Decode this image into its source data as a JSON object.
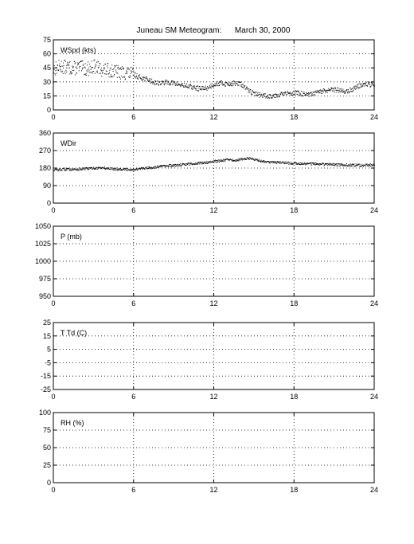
{
  "title": "Juneau SM Meteogram:      March 30, 2000",
  "chart_data": [
    {
      "type": "scatter",
      "label": "WSpd (kts)",
      "xlim": [
        0,
        24
      ],
      "ylim": [
        0,
        75
      ],
      "xticks": [
        "0",
        "6",
        "12",
        "18",
        "24"
      ],
      "yticks": [
        "0",
        "15",
        "30",
        "45",
        "60",
        "75"
      ],
      "grid": true,
      "series": [
        {
          "color": "#000000",
          "x": [
            0,
            0.5,
            1,
            1.5,
            2,
            2.5,
            3,
            3.5,
            4,
            4.5,
            5,
            5.5,
            6,
            6.5,
            7,
            7.5,
            8,
            8.5,
            9,
            9.5,
            10,
            10.5,
            11,
            11.5,
            12,
            12.5,
            13,
            13.5,
            14,
            14.5,
            15,
            15.5,
            16,
            16.5,
            17,
            17.5,
            18,
            18.5,
            19,
            19.5,
            20,
            20.5,
            21,
            21.5,
            22,
            22.5,
            23,
            23.5,
            24
          ],
          "y": [
            44,
            47,
            46,
            45,
            46,
            44,
            47,
            44,
            43,
            42,
            40,
            40,
            38,
            35,
            33,
            30,
            29,
            30,
            29,
            27,
            26,
            24,
            23,
            24,
            28,
            29,
            28,
            29,
            28,
            22,
            18,
            16,
            15,
            16,
            17,
            18,
            19,
            18,
            16,
            18,
            20,
            21,
            22,
            21,
            20,
            24,
            27,
            28,
            26
          ]
        }
      ]
    },
    {
      "type": "scatter",
      "label": "WDir",
      "xlim": [
        0,
        24
      ],
      "ylim": [
        0,
        360
      ],
      "xticks": [
        "0",
        "6",
        "12",
        "18",
        "24"
      ],
      "yticks": [
        "0",
        "90",
        "180",
        "270",
        "360"
      ],
      "grid": true,
      "series": [
        {
          "color": "#000000",
          "x": [
            0,
            0.5,
            1,
            1.5,
            2,
            2.5,
            3,
            3.5,
            4,
            4.5,
            5,
            5.5,
            6,
            6.5,
            7,
            7.5,
            8,
            8.5,
            9,
            9.5,
            10,
            10.5,
            11,
            11.5,
            12,
            12.5,
            13,
            13.5,
            14,
            14.5,
            15,
            15.5,
            16,
            16.5,
            17,
            17.5,
            18,
            18.5,
            19,
            19.5,
            20,
            20.5,
            21,
            21.5,
            22,
            22.5,
            23,
            23.5,
            24
          ],
          "y": [
            172,
            174,
            176,
            175,
            177,
            179,
            181,
            183,
            180,
            178,
            176,
            175,
            174,
            178,
            182,
            186,
            190,
            193,
            195,
            198,
            202,
            205,
            208,
            211,
            216,
            220,
            224,
            221,
            226,
            232,
            228,
            218,
            214,
            212,
            210,
            208,
            206,
            205,
            204,
            203,
            202,
            201,
            200,
            199,
            198,
            197,
            196,
            197,
            198
          ]
        }
      ]
    },
    {
      "type": "scatter",
      "label": "P (mb)",
      "xlim": [
        0,
        24
      ],
      "ylim": [
        950,
        1050
      ],
      "xticks": [
        "0",
        "6",
        "12",
        "18",
        "24"
      ],
      "yticks": [
        "950",
        "975",
        "1000",
        "1025",
        "1050"
      ],
      "grid": true,
      "series": []
    },
    {
      "type": "scatter",
      "label": "T Td (C)",
      "xlim": [
        0,
        24
      ],
      "ylim": [
        -25,
        25
      ],
      "xticks": [
        "0",
        "6",
        "12",
        "18",
        "24"
      ],
      "yticks": [
        "-25",
        "-15",
        "-5",
        "5",
        "15",
        "25"
      ],
      "grid": true,
      "series": []
    },
    {
      "type": "scatter",
      "label": "RH (%)",
      "xlim": [
        0,
        24
      ],
      "ylim": [
        0,
        100
      ],
      "xticks": [
        "0",
        "6",
        "12",
        "18",
        "24"
      ],
      "yticks": [
        "0",
        "25",
        "50",
        "75",
        "100"
      ],
      "grid": true,
      "series": []
    }
  ]
}
